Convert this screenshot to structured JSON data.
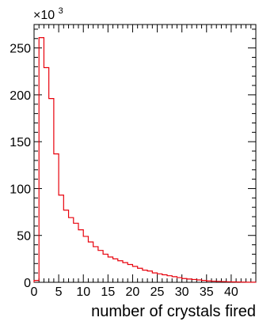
{
  "chart_data": {
    "type": "bar",
    "style": "step-histogram",
    "xlabel": "number of crystals fired",
    "ylabel": "",
    "y_multiplier": "×10",
    "y_multiplier_exp": "3",
    "xlim": [
      0,
      45
    ],
    "ylim": [
      0,
      275
    ],
    "x_ticks": [
      "0",
      "5",
      "10",
      "15",
      "20",
      "25",
      "30",
      "35",
      "40"
    ],
    "y_ticks": [
      "0",
      "50",
      "100",
      "150",
      "200",
      "250"
    ],
    "grid": false,
    "line_color": "#e8000b",
    "series": [
      {
        "bin_width": 1,
        "x_start": 0,
        "values": [
          2,
          261,
          229,
          196,
          137,
          93,
          77,
          69,
          63,
          56,
          49,
          43,
          38,
          34,
          30,
          27,
          25,
          23,
          21,
          19,
          17,
          15,
          13,
          12,
          10,
          9,
          8,
          7,
          6,
          5,
          4,
          3.5,
          3,
          2.5,
          2,
          1.5,
          1.2,
          1,
          0.8,
          0.6,
          0.4,
          0.3,
          0.2,
          0.1,
          0.1
        ]
      }
    ]
  }
}
